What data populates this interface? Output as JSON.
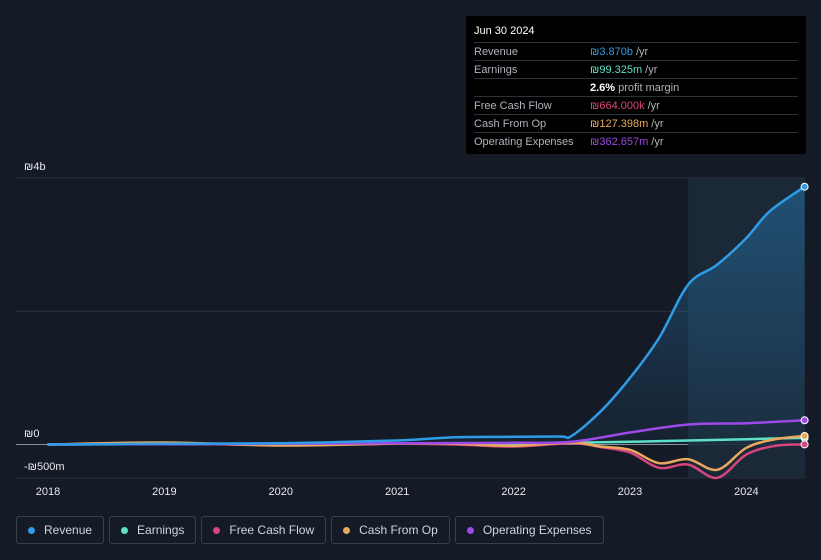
{
  "tooltip": {
    "date": "Jun 30 2024",
    "rows": [
      {
        "label": "Revenue",
        "value": "₪3.870b",
        "unit": "/yr",
        "color": "#2e9ce6"
      },
      {
        "label": "Earnings",
        "value": "₪99.325m",
        "unit": "/yr",
        "color": "#5ee0c8"
      },
      {
        "label": "",
        "value": "2.6%",
        "unit": "profit margin",
        "color": "#ffffff"
      },
      {
        "label": "Free Cash Flow",
        "value": "₪664.000k",
        "unit": "/yr",
        "color": "#d9457d"
      },
      {
        "label": "Cash From Op",
        "value": "₪127.398m",
        "unit": "/yr",
        "color": "#e8a95c"
      },
      {
        "label": "Operating Expenses",
        "value": "₪362.657m",
        "unit": "/yr",
        "color": "#9b4ae8"
      }
    ]
  },
  "legend": [
    {
      "label": "Revenue",
      "color": "#2e9ce6"
    },
    {
      "label": "Earnings",
      "color": "#5ee0c8"
    },
    {
      "label": "Free Cash Flow",
      "color": "#d9457d"
    },
    {
      "label": "Cash From Op",
      "color": "#e8a95c"
    },
    {
      "label": "Operating Expenses",
      "color": "#9b4ae8"
    }
  ],
  "chart_data": {
    "type": "line",
    "y_tick_labels": [
      "₪4b",
      "₪0",
      "-₪500m"
    ],
    "x_tick_labels": [
      "2018",
      "2019",
      "2020",
      "2021",
      "2022",
      "2023",
      "2024"
    ],
    "ylim": [
      -500,
      4000
    ],
    "y_unit": "₪ millions",
    "grid": true,
    "highlight_from": 2023.5,
    "series": [
      {
        "name": "Revenue",
        "color": "#2e9ce6",
        "area": true,
        "points": [
          [
            2018.0,
            0
          ],
          [
            2019.0,
            10
          ],
          [
            2020.0,
            20
          ],
          [
            2021.0,
            60
          ],
          [
            2021.5,
            110
          ],
          [
            2022.0,
            115
          ],
          [
            2022.4,
            120
          ],
          [
            2022.5,
            130
          ],
          [
            2022.75,
            500
          ],
          [
            2023.0,
            1000
          ],
          [
            2023.25,
            1600
          ],
          [
            2023.5,
            2400
          ],
          [
            2023.75,
            2700
          ],
          [
            2024.0,
            3100
          ],
          [
            2024.2,
            3500
          ],
          [
            2024.5,
            3870
          ]
        ]
      },
      {
        "name": "Earnings",
        "color": "#5ee0c8",
        "points": [
          [
            2018.0,
            0
          ],
          [
            2019.0,
            5
          ],
          [
            2020.0,
            8
          ],
          [
            2021.0,
            12
          ],
          [
            2022.0,
            15
          ],
          [
            2022.5,
            25
          ],
          [
            2023.0,
            40
          ],
          [
            2023.5,
            60
          ],
          [
            2024.0,
            80
          ],
          [
            2024.5,
            99
          ]
        ]
      },
      {
        "name": "Free Cash Flow",
        "color": "#d9457d",
        "points": [
          [
            2018.0,
            0
          ],
          [
            2019.0,
            20
          ],
          [
            2020.0,
            -10
          ],
          [
            2021.0,
            10
          ],
          [
            2021.5,
            0
          ],
          [
            2022.0,
            -30
          ],
          [
            2022.5,
            20
          ],
          [
            2022.75,
            -40
          ],
          [
            2023.0,
            -120
          ],
          [
            2023.25,
            -350
          ],
          [
            2023.5,
            -300
          ],
          [
            2023.75,
            -500
          ],
          [
            2024.0,
            -150
          ],
          [
            2024.25,
            -20
          ],
          [
            2024.5,
            1
          ]
        ]
      },
      {
        "name": "Cash From Op",
        "color": "#e8a95c",
        "points": [
          [
            2018.0,
            0
          ],
          [
            2019.0,
            30
          ],
          [
            2020.0,
            -15
          ],
          [
            2021.0,
            15
          ],
          [
            2021.5,
            10
          ],
          [
            2022.0,
            -20
          ],
          [
            2022.5,
            30
          ],
          [
            2022.75,
            -30
          ],
          [
            2023.0,
            -80
          ],
          [
            2023.25,
            -280
          ],
          [
            2023.5,
            -220
          ],
          [
            2023.75,
            -380
          ],
          [
            2024.0,
            -50
          ],
          [
            2024.25,
            80
          ],
          [
            2024.5,
            127
          ]
        ]
      },
      {
        "name": "Operating Expenses",
        "color": "#9b4ae8",
        "points": [
          [
            2018.0,
            0
          ],
          [
            2019.0,
            5
          ],
          [
            2020.0,
            10
          ],
          [
            2021.0,
            20
          ],
          [
            2022.0,
            25
          ],
          [
            2022.5,
            40
          ],
          [
            2023.0,
            180
          ],
          [
            2023.5,
            300
          ],
          [
            2024.0,
            320
          ],
          [
            2024.5,
            363
          ]
        ]
      }
    ]
  }
}
